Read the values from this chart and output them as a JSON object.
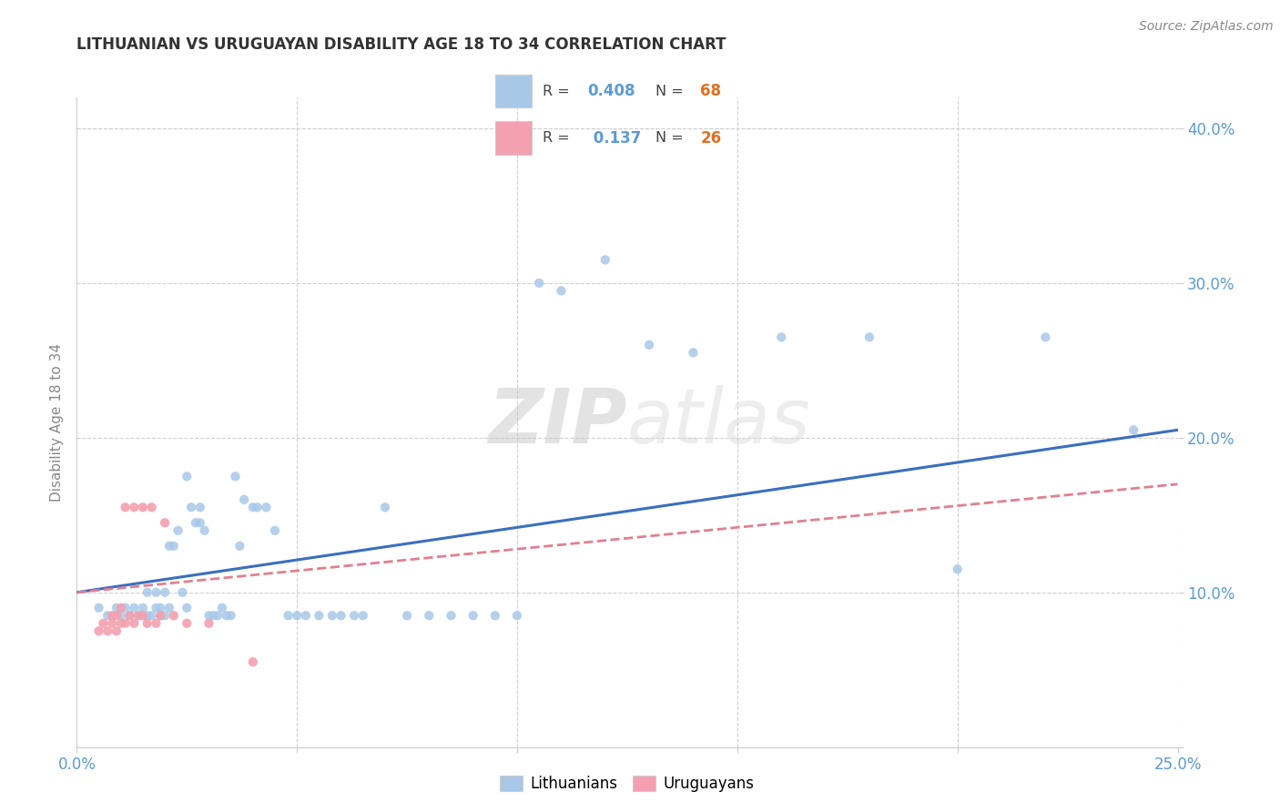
{
  "title": "LITHUANIAN VS URUGUAYAN DISABILITY AGE 18 TO 34 CORRELATION CHART",
  "source": "Source: ZipAtlas.com",
  "ylabel": "Disability Age 18 to 34",
  "xlim": [
    0.0,
    0.25
  ],
  "ylim": [
    0.0,
    0.42
  ],
  "xticks": [
    0.0,
    0.05,
    0.1,
    0.15,
    0.2,
    0.25
  ],
  "yticks": [
    0.0,
    0.1,
    0.2,
    0.3,
    0.4
  ],
  "color_blue": "#a8c8e8",
  "color_pink": "#f4a0b0",
  "color_line_blue": "#3a6fbf",
  "color_line_pink": "#e08090",
  "watermark_zip": "ZIP",
  "watermark_atlas": "atlas",
  "blue_scatter_x": [
    0.005,
    0.007,
    0.009,
    0.01,
    0.011,
    0.012,
    0.013,
    0.014,
    0.015,
    0.016,
    0.016,
    0.017,
    0.018,
    0.018,
    0.019,
    0.019,
    0.02,
    0.02,
    0.021,
    0.021,
    0.022,
    0.023,
    0.024,
    0.025,
    0.025,
    0.026,
    0.027,
    0.028,
    0.028,
    0.029,
    0.03,
    0.031,
    0.032,
    0.033,
    0.034,
    0.035,
    0.036,
    0.037,
    0.038,
    0.04,
    0.041,
    0.043,
    0.045,
    0.048,
    0.05,
    0.052,
    0.055,
    0.058,
    0.06,
    0.063,
    0.065,
    0.07,
    0.075,
    0.08,
    0.085,
    0.09,
    0.095,
    0.1,
    0.105,
    0.11,
    0.12,
    0.13,
    0.14,
    0.16,
    0.18,
    0.2,
    0.22,
    0.24
  ],
  "blue_scatter_y": [
    0.09,
    0.085,
    0.09,
    0.085,
    0.09,
    0.085,
    0.09,
    0.085,
    0.09,
    0.085,
    0.1,
    0.085,
    0.09,
    0.1,
    0.085,
    0.09,
    0.085,
    0.1,
    0.09,
    0.13,
    0.13,
    0.14,
    0.1,
    0.09,
    0.175,
    0.155,
    0.145,
    0.145,
    0.155,
    0.14,
    0.085,
    0.085,
    0.085,
    0.09,
    0.085,
    0.085,
    0.175,
    0.13,
    0.16,
    0.155,
    0.155,
    0.155,
    0.14,
    0.085,
    0.085,
    0.085,
    0.085,
    0.085,
    0.085,
    0.085,
    0.085,
    0.155,
    0.085,
    0.085,
    0.085,
    0.085,
    0.085,
    0.085,
    0.3,
    0.295,
    0.315,
    0.26,
    0.255,
    0.265,
    0.265,
    0.115,
    0.265,
    0.205
  ],
  "pink_scatter_x": [
    0.005,
    0.006,
    0.007,
    0.008,
    0.008,
    0.009,
    0.009,
    0.01,
    0.01,
    0.011,
    0.011,
    0.012,
    0.013,
    0.013,
    0.014,
    0.015,
    0.015,
    0.016,
    0.017,
    0.018,
    0.019,
    0.02,
    0.022,
    0.025,
    0.03,
    0.04
  ],
  "pink_scatter_y": [
    0.075,
    0.08,
    0.075,
    0.08,
    0.085,
    0.075,
    0.085,
    0.08,
    0.09,
    0.08,
    0.155,
    0.085,
    0.08,
    0.155,
    0.085,
    0.155,
    0.085,
    0.08,
    0.155,
    0.08,
    0.085,
    0.145,
    0.085,
    0.08,
    0.08,
    0.055
  ],
  "blue_line_x": [
    0.0,
    0.25
  ],
  "blue_line_y": [
    0.1,
    0.205
  ],
  "pink_line_x": [
    0.0,
    0.25
  ],
  "pink_line_y": [
    0.1,
    0.17
  ],
  "legend_r1": "0.408",
  "legend_n1": "68",
  "legend_r2": "0.137",
  "legend_n2": "26"
}
